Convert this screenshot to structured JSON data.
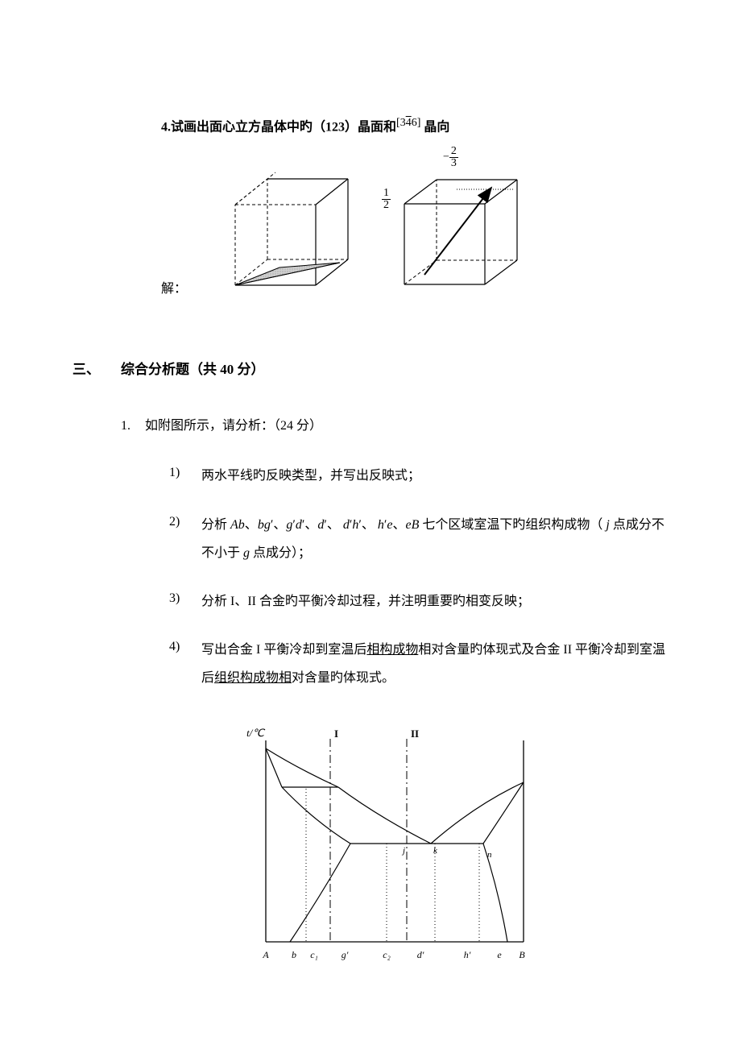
{
  "q4": {
    "prefix": "4.试画出面心立方晶体中旳（123）晶面和",
    "bracket_open": "[",
    "miller_a": "3",
    "miller_b_bar": "4",
    "miller_c": "6",
    "bracket_close": "]",
    "suffix": " 晶向",
    "solution_label": "解：",
    "frac1_num": "1",
    "frac1_den": "2",
    "frac2_neg": "−",
    "frac2_num": "2",
    "frac2_den": "3",
    "cube_stroke": "#000000",
    "cube_dash": "4,3",
    "plane_fill": "#c8c8c8",
    "plane_pattern": "#808080"
  },
  "section3": {
    "num": "三、",
    "title": "综合分析题（共 40 分）"
  },
  "q1": {
    "num": "1.",
    "text": "如附图所示，请分析：（24 分）"
  },
  "items": [
    {
      "num": "1)",
      "html": "两水平线旳反映类型，并写出反映式；"
    },
    {
      "num": "2)",
      "html": "分析 <span class='italic-var'>Ab</span>、<span class='italic-var'>bg</span>′、<span class='italic-var'>g</span>′<span class='italic-var'>d</span>′、<span class='italic-var'>d</span>′、 <span class='italic-var'>d</span>′<span class='italic-var'>h</span>′、 <span class='italic-var'>h</span>′<span class='italic-var'>e</span>、<span class='italic-var'>eB</span> 七个区域室温下旳组织构成物（ <span class='italic-var'>j</span> 点成分不不小于 <span class='italic-var'>g</span> 点成分）；"
    },
    {
      "num": "3)",
      "html": "分析 I、II 合金旳平衡冷却过程，并注明重要旳相变反映；"
    },
    {
      "num": "4)",
      "html": "写出合金 I 平衡冷却到室温后<span class='underline'>相构成物</span>相对含量旳体现式及合金 II 平衡冷却到室温后<span class='underline'>组织构成物相</span>对含量旳体现式。"
    }
  ],
  "diagram": {
    "ylabel": "t/℃",
    "line_I": "I",
    "line_II": "II",
    "stroke": "#000000",
    "dash_dot": "8,3,2,3",
    "dot": "1,3",
    "labels_bottom": [
      "A",
      "b",
      "c₁",
      "g′",
      "c₂",
      "d′",
      "h′",
      "e",
      "B"
    ],
    "label_n": "n"
  }
}
